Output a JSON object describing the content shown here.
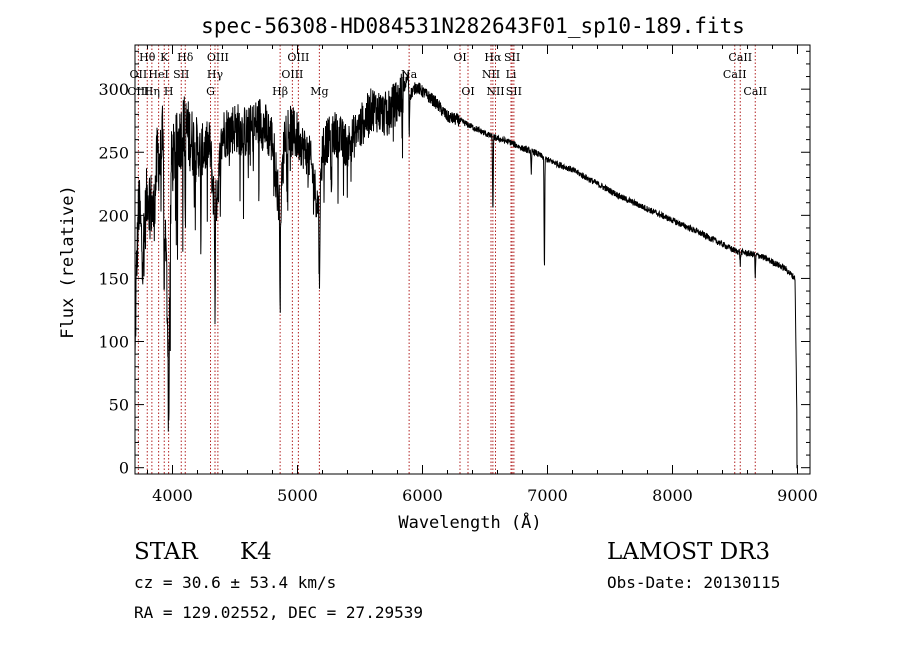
{
  "chart_data": {
    "type": "line",
    "title": "spec-56308-HD084531N282643F01_sp10-189.fits",
    "xlabel": "Wavelength (Å)",
    "ylabel": "Flux (relative)",
    "xlim": [
      3700,
      9100
    ],
    "ylim": [
      -5,
      335
    ],
    "x_ticks": [
      4000,
      5000,
      6000,
      7000,
      8000,
      9000
    ],
    "x_tick_labels": [
      "4000",
      "5000",
      "6000",
      "7000",
      "8000",
      "9000"
    ],
    "y_ticks": [
      0,
      50,
      100,
      150,
      200,
      250,
      300
    ],
    "y_tick_labels": [
      "0",
      "50",
      "100",
      "150",
      "200",
      "250",
      "300"
    ],
    "grid": false,
    "series": [
      {
        "name": "spectrum",
        "color": "#000000",
        "anchors": [
          [
            3700,
            80
          ],
          [
            3710,
            150
          ],
          [
            3730,
            210
          ],
          [
            3760,
            170
          ],
          [
            3800,
            220
          ],
          [
            3850,
            200
          ],
          [
            3880,
            250
          ],
          [
            3900,
            240
          ],
          [
            3920,
            260
          ],
          [
            3950,
            160
          ],
          [
            3970,
            80
          ],
          [
            3990,
            240
          ],
          [
            4050,
            260
          ],
          [
            4100,
            270
          ],
          [
            4200,
            250
          ],
          [
            4300,
            255
          ],
          [
            4340,
            200
          ],
          [
            4400,
            265
          ],
          [
            4500,
            270
          ],
          [
            4600,
            265
          ],
          [
            4700,
            275
          ],
          [
            4800,
            260
          ],
          [
            4861,
            200
          ],
          [
            4900,
            270
          ],
          [
            5000,
            262
          ],
          [
            5100,
            245
          ],
          [
            5175,
            200
          ],
          [
            5200,
            255
          ],
          [
            5300,
            265
          ],
          [
            5400,
            255
          ],
          [
            5500,
            270
          ],
          [
            5600,
            285
          ],
          [
            5700,
            280
          ],
          [
            5800,
            290
          ],
          [
            5850,
            300
          ],
          [
            5890,
            312
          ],
          [
            5895,
            295
          ],
          [
            5950,
            302
          ],
          [
            6000,
            298
          ],
          [
            6100,
            290
          ],
          [
            6200,
            278
          ],
          [
            6300,
            275
          ],
          [
            6400,
            270
          ],
          [
            6500,
            265
          ],
          [
            6563,
            262
          ],
          [
            6700,
            258
          ],
          [
            6800,
            253
          ],
          [
            6900,
            250
          ],
          [
            7000,
            244
          ],
          [
            7100,
            240
          ],
          [
            7200,
            236
          ],
          [
            7400,
            225
          ],
          [
            7600,
            214
          ],
          [
            7800,
            205
          ],
          [
            8000,
            196
          ],
          [
            8200,
            187
          ],
          [
            8400,
            177
          ],
          [
            8500,
            172
          ],
          [
            8600,
            170
          ],
          [
            8700,
            168
          ],
          [
            8800,
            163
          ],
          [
            8900,
            158
          ],
          [
            8980,
            150
          ],
          [
            9000,
            0
          ]
        ],
        "dips": [
          [
            3934,
            60
          ],
          [
            3969,
            60
          ],
          [
            4102,
            80
          ],
          [
            4227,
            80
          ],
          [
            4340,
            70
          ],
          [
            4861,
            70
          ],
          [
            5175,
            70
          ],
          [
            5270,
            60
          ],
          [
            5893,
            40
          ],
          [
            6563,
            65
          ],
          [
            6870,
            20
          ],
          [
            6975,
            100
          ],
          [
            8542,
            10
          ],
          [
            8662,
            18
          ]
        ]
      }
    ],
    "line_markers": {
      "labels": [
        {
          "text": "Hθ",
          "wl": 3798,
          "row": 1
        },
        {
          "text": "OII",
          "wl": 3727,
          "row": 2
        },
        {
          "text": "OIII",
          "wl": 3727,
          "row": 3
        },
        {
          "text": "K",
          "wl": 3934,
          "row": 1
        },
        {
          "text": "HeI",
          "wl": 3889,
          "row": 2
        },
        {
          "text": "Hη",
          "wl": 3835,
          "row": 3
        },
        {
          "text": "H",
          "wl": 3969,
          "row": 3
        },
        {
          "text": "SII",
          "wl": 4070,
          "row": 2
        },
        {
          "text": "Hδ",
          "wl": 4102,
          "row": 1
        },
        {
          "text": "OIII",
          "wl": 4363,
          "row": 1
        },
        {
          "text": "Hγ",
          "wl": 4340,
          "row": 2
        },
        {
          "text": "G",
          "wl": 4304,
          "row": 3
        },
        {
          "text": "OIII",
          "wl": 5007,
          "row": 1
        },
        {
          "text": "OIII",
          "wl": 4959,
          "row": 2
        },
        {
          "text": "Hβ",
          "wl": 4861,
          "row": 3
        },
        {
          "text": "Mg",
          "wl": 5175,
          "row": 3
        },
        {
          "text": "Na",
          "wl": 5893,
          "row": 2
        },
        {
          "text": "OI",
          "wl": 6300,
          "row": 1
        },
        {
          "text": "OI",
          "wl": 6364,
          "row": 3
        },
        {
          "text": "Hα",
          "wl": 6563,
          "row": 1
        },
        {
          "text": "SII",
          "wl": 6717,
          "row": 1
        },
        {
          "text": "NII",
          "wl": 6548,
          "row": 2
        },
        {
          "text": "Li",
          "wl": 6708,
          "row": 2
        },
        {
          "text": "NII",
          "wl": 6584,
          "row": 3
        },
        {
          "text": "SII",
          "wl": 6731,
          "row": 3
        },
        {
          "text": "CaII",
          "wl": 8542,
          "row": 1
        },
        {
          "text": "CaII",
          "wl": 8498,
          "row": 2
        },
        {
          "text": "CaII",
          "wl": 8662,
          "row": 3
        }
      ],
      "lines": [
        3727,
        3798,
        3835,
        3889,
        3934,
        3969,
        4070,
        4102,
        4304,
        4340,
        4363,
        4861,
        4959,
        5007,
        5175,
        5893,
        6300,
        6364,
        6548,
        6563,
        6584,
        6708,
        6717,
        6731,
        8498,
        8542,
        8662
      ],
      "color": "#b22222"
    }
  },
  "info": {
    "object_class": "STAR",
    "subclass": "K4",
    "survey": "LAMOST DR3",
    "cz": "cz = 30.6 ± 53.4 km/s",
    "obs_date": "Obs-Date: 20130115",
    "coords": "RA = 129.02552, DEC =  27.29539"
  }
}
